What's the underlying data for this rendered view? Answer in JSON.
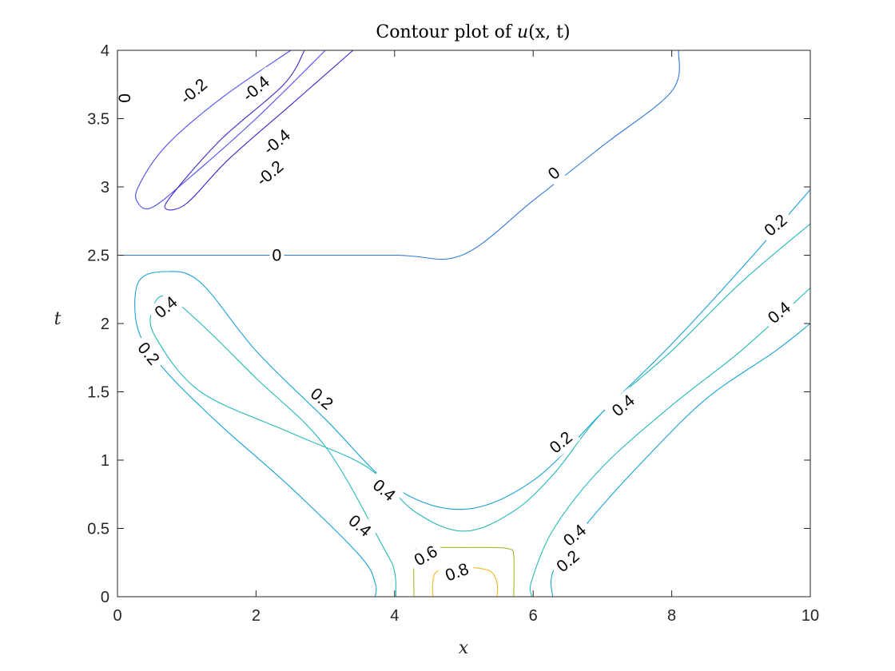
{
  "chart_data": {
    "type": "contour",
    "title": {
      "prefix": "Contour plot of ",
      "func": "u",
      "args": "(x, t)"
    },
    "xlabel": "x",
    "ylabel": "t",
    "xlim": [
      0,
      10
    ],
    "ylim": [
      0,
      4
    ],
    "xticks": [
      0,
      2,
      4,
      6,
      8,
      10
    ],
    "xtick_labels": [
      "0",
      "2",
      "4",
      "6",
      "8",
      "10"
    ],
    "yticks": [
      0,
      0.5,
      1,
      1.5,
      2,
      2.5,
      3,
      3.5,
      4
    ],
    "ytick_labels": [
      "0",
      "0.5",
      "1",
      "1.5",
      "2",
      "2.5",
      "3",
      "3.5",
      "4"
    ],
    "grid": false,
    "level_colors": {
      "-0.4": "#3d27c9",
      "-0.2": "#4a4cf0",
      "0": "#2f78d8",
      "0.2": "#17a2d6",
      "0.4": "#25b9b6",
      "0.6": "#9cbd2b",
      "0.8": "#f5b91c"
    },
    "contours": [
      {
        "level": 0.8,
        "points": [
          [
            4.55,
            0
          ],
          [
            4.55,
            0.1
          ],
          [
            4.6,
            0.18
          ],
          [
            4.8,
            0.21
          ],
          [
            5.0,
            0.21
          ],
          [
            5.2,
            0.21
          ],
          [
            5.4,
            0.18
          ],
          [
            5.48,
            0.1
          ],
          [
            5.48,
            0
          ]
        ]
      },
      {
        "level": 0.6,
        "points": [
          [
            4.28,
            0
          ],
          [
            4.28,
            0.3
          ],
          [
            4.35,
            0.35
          ],
          [
            4.6,
            0.36
          ],
          [
            5.0,
            0.36
          ],
          [
            5.4,
            0.36
          ],
          [
            5.65,
            0.35
          ],
          [
            5.72,
            0.3
          ],
          [
            5.72,
            0
          ]
        ]
      },
      {
        "level": 0.4,
        "points": [
          [
            4.02,
            0
          ],
          [
            4.0,
            0.18
          ],
          [
            3.85,
            0.35
          ],
          [
            3.0,
            1.1
          ],
          [
            2.0,
            1.6
          ],
          [
            1.2,
            2.0
          ],
          [
            0.7,
            2.2
          ],
          [
            0.5,
            2.1
          ],
          [
            0.55,
            1.9
          ],
          [
            1.2,
            1.5
          ],
          [
            2.5,
            1.2
          ],
          [
            3.6,
            0.95
          ],
          [
            4.3,
            0.62
          ],
          [
            5.0,
            0.48
          ],
          [
            5.7,
            0.62
          ],
          [
            6.3,
            0.9
          ],
          [
            7.0,
            1.35
          ],
          [
            8.0,
            1.8
          ],
          [
            9.0,
            2.3
          ],
          [
            10.0,
            2.73
          ]
        ]
      },
      {
        "level": 0.2,
        "points": [
          [
            3.72,
            0
          ],
          [
            3.72,
            0.1
          ],
          [
            3.5,
            0.3
          ],
          [
            2.5,
            0.8
          ],
          [
            1.5,
            1.25
          ],
          [
            0.7,
            1.65
          ],
          [
            0.3,
            1.95
          ],
          [
            0.3,
            2.3
          ],
          [
            0.7,
            2.38
          ],
          [
            1.2,
            2.3
          ],
          [
            2.0,
            1.8
          ],
          [
            3.0,
            1.3
          ],
          [
            4.0,
            0.8
          ],
          [
            5.0,
            0.64
          ],
          [
            6.0,
            0.85
          ],
          [
            7.0,
            1.35
          ],
          [
            8.0,
            1.85
          ],
          [
            9.0,
            2.4
          ],
          [
            10.0,
            2.98
          ]
        ]
      },
      {
        "level": 0.4,
        "points": [
          [
            5.98,
            0
          ],
          [
            5.98,
            0.12
          ],
          [
            6.3,
            0.5
          ],
          [
            7.0,
            0.95
          ],
          [
            8.0,
            1.4
          ],
          [
            9.0,
            1.8
          ],
          [
            10.0,
            2.26
          ]
        ]
      },
      {
        "level": 0.2,
        "points": [
          [
            6.28,
            0
          ],
          [
            6.3,
            0.2
          ],
          [
            6.8,
            0.55
          ],
          [
            7.6,
            1.0
          ],
          [
            8.5,
            1.45
          ],
          [
            9.5,
            1.8
          ],
          [
            10.0,
            2.0
          ]
        ]
      },
      {
        "level": 0,
        "points": [
          [
            0,
            2.5
          ],
          [
            2.0,
            2.5
          ],
          [
            4.0,
            2.5
          ],
          [
            4.97,
            2.5
          ],
          [
            6.0,
            2.9
          ],
          [
            7.0,
            3.3
          ],
          [
            8.0,
            3.7
          ],
          [
            8.1,
            4.0
          ]
        ]
      },
      {
        "level": 0,
        "points": [
          [
            0,
            2.5
          ],
          [
            0,
            3.0
          ],
          [
            0,
            3.5
          ],
          [
            0,
            4.0
          ]
        ]
      },
      {
        "level": -0.2,
        "points": [
          [
            3.0,
            4.0
          ],
          [
            2.0,
            3.5
          ],
          [
            1.0,
            3.05
          ],
          [
            0.5,
            2.85
          ],
          [
            0.3,
            2.88
          ],
          [
            0.3,
            3.0
          ],
          [
            0.7,
            3.3
          ],
          [
            1.5,
            3.65
          ],
          [
            2.5,
            4.0
          ]
        ]
      },
      {
        "level": -0.4,
        "points": [
          [
            3.4,
            4.0
          ],
          [
            2.5,
            3.6
          ],
          [
            1.6,
            3.2
          ],
          [
            1.0,
            2.88
          ],
          [
            0.7,
            2.84
          ],
          [
            0.8,
            2.95
          ],
          [
            1.5,
            3.35
          ],
          [
            2.4,
            3.75
          ],
          [
            2.7,
            4.0
          ]
        ]
      }
    ],
    "contour_labels": [
      {
        "text": "-0.2",
        "x": 1.1,
        "y": 3.7,
        "angle": -40
      },
      {
        "text": "-0.4",
        "x": 2.0,
        "y": 3.72,
        "angle": -40
      },
      {
        "text": "-0.4",
        "x": 2.3,
        "y": 3.33,
        "angle": -40
      },
      {
        "text": "-0.2",
        "x": 2.2,
        "y": 3.1,
        "angle": -40
      },
      {
        "text": "0",
        "x": 0.1,
        "y": 3.65,
        "angle": 90
      },
      {
        "text": "0",
        "x": 6.3,
        "y": 3.1,
        "angle": -40
      },
      {
        "text": "0",
        "x": 2.3,
        "y": 2.5,
        "angle": 0
      },
      {
        "text": "0.2",
        "x": 9.5,
        "y": 2.72,
        "angle": -40
      },
      {
        "text": "0.4",
        "x": 9.55,
        "y": 2.08,
        "angle": -40
      },
      {
        "text": "0.4",
        "x": 0.7,
        "y": 2.12,
        "angle": -40
      },
      {
        "text": "0.2",
        "x": 0.45,
        "y": 1.78,
        "angle": 50
      },
      {
        "text": "0.2",
        "x": 2.95,
        "y": 1.45,
        "angle": 40
      },
      {
        "text": "0.4",
        "x": 7.3,
        "y": 1.4,
        "angle": -40
      },
      {
        "text": "0.2",
        "x": 6.4,
        "y": 1.13,
        "angle": -40
      },
      {
        "text": "0.4",
        "x": 3.85,
        "y": 0.78,
        "angle": 40
      },
      {
        "text": "0.4",
        "x": 3.5,
        "y": 0.52,
        "angle": 40
      },
      {
        "text": "0.4",
        "x": 6.6,
        "y": 0.45,
        "angle": -40
      },
      {
        "text": "0.2",
        "x": 6.5,
        "y": 0.26,
        "angle": -40
      },
      {
        "text": "0.6",
        "x": 4.45,
        "y": 0.3,
        "angle": -30
      },
      {
        "text": "0.8",
        "x": 4.9,
        "y": 0.18,
        "angle": -20
      }
    ]
  }
}
